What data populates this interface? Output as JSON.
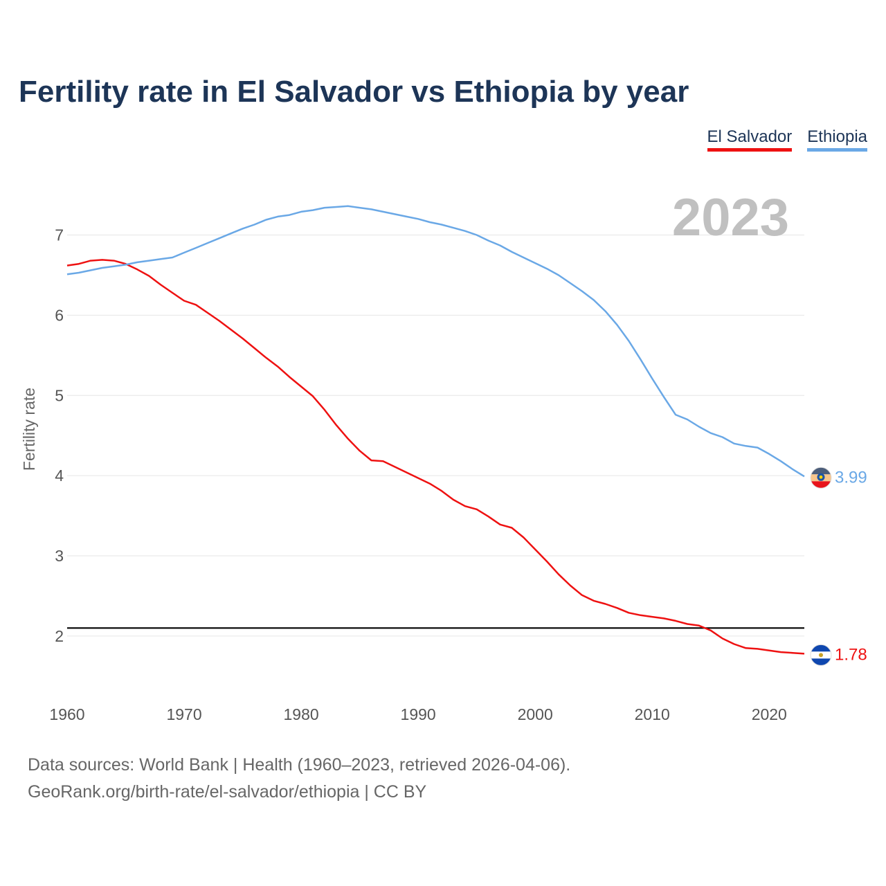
{
  "title": "Fertility rate in El Salvador vs Ethiopia by year",
  "legend": {
    "el_salvador": "El Salvador",
    "ethiopia": "Ethiopia"
  },
  "footer": {
    "line1": "Data sources: World Bank | Health (1960–2023, retrieved 2026-04-06).",
    "line2": "GeoRank.org/birth-rate/el-salvador/ethiopia | CC BY"
  },
  "chart_data": {
    "type": "line",
    "title": "Fertility rate in El Salvador vs Ethiopia by year",
    "xlabel": "",
    "ylabel": "Fertility rate",
    "year_label": "2023",
    "xlim": [
      1960,
      2023
    ],
    "ylim": [
      1.3,
      7.6
    ],
    "x_ticks": [
      1960,
      1970,
      1980,
      1990,
      2000,
      2010,
      2020
    ],
    "y_ticks": [
      2,
      3,
      4,
      5,
      6,
      7
    ],
    "reference_line": 2.1,
    "grid": true,
    "legend_position": "top-right",
    "x": [
      1960,
      1961,
      1962,
      1963,
      1964,
      1965,
      1966,
      1967,
      1968,
      1969,
      1970,
      1971,
      1972,
      1973,
      1974,
      1975,
      1976,
      1977,
      1978,
      1979,
      1980,
      1981,
      1982,
      1983,
      1984,
      1985,
      1986,
      1987,
      1988,
      1989,
      1990,
      1991,
      1992,
      1993,
      1994,
      1995,
      1996,
      1997,
      1998,
      1999,
      2000,
      2001,
      2002,
      2003,
      2004,
      2005,
      2006,
      2007,
      2008,
      2009,
      2010,
      2011,
      2012,
      2013,
      2014,
      2015,
      2016,
      2017,
      2018,
      2019,
      2020,
      2021,
      2022,
      2023
    ],
    "series": [
      {
        "name": "El Salvador",
        "color": "#ee1111",
        "end_label": "1.78",
        "values": [
          6.62,
          6.64,
          6.68,
          6.69,
          6.68,
          6.64,
          6.57,
          6.49,
          6.38,
          6.28,
          6.18,
          6.13,
          6.03,
          5.93,
          5.82,
          5.71,
          5.59,
          5.47,
          5.36,
          5.23,
          5.11,
          4.99,
          4.82,
          4.63,
          4.46,
          4.31,
          4.19,
          4.18,
          4.11,
          4.04,
          3.97,
          3.9,
          3.81,
          3.7,
          3.62,
          3.58,
          3.49,
          3.39,
          3.35,
          3.23,
          3.08,
          2.93,
          2.77,
          2.63,
          2.51,
          2.44,
          2.4,
          2.35,
          2.29,
          2.26,
          2.24,
          2.22,
          2.19,
          2.15,
          2.13,
          2.07,
          1.97,
          1.9,
          1.85,
          1.84,
          1.82,
          1.8,
          1.79,
          1.78
        ]
      },
      {
        "name": "Ethiopia",
        "color": "#6aa8e6",
        "end_label": "3.99",
        "values": [
          6.51,
          6.53,
          6.56,
          6.59,
          6.61,
          6.63,
          6.66,
          6.68,
          6.7,
          6.72,
          6.78,
          6.84,
          6.9,
          6.96,
          7.02,
          7.08,
          7.13,
          7.19,
          7.23,
          7.25,
          7.29,
          7.31,
          7.34,
          7.35,
          7.36,
          7.34,
          7.32,
          7.29,
          7.26,
          7.23,
          7.2,
          7.16,
          7.13,
          7.09,
          7.05,
          7.0,
          6.93,
          6.87,
          6.79,
          6.72,
          6.65,
          6.58,
          6.5,
          6.4,
          6.3,
          6.19,
          6.05,
          5.88,
          5.68,
          5.45,
          5.21,
          4.98,
          4.76,
          4.7,
          4.61,
          4.53,
          4.48,
          4.4,
          4.37,
          4.35,
          4.27,
          4.18,
          4.08,
          3.99
        ]
      }
    ]
  }
}
